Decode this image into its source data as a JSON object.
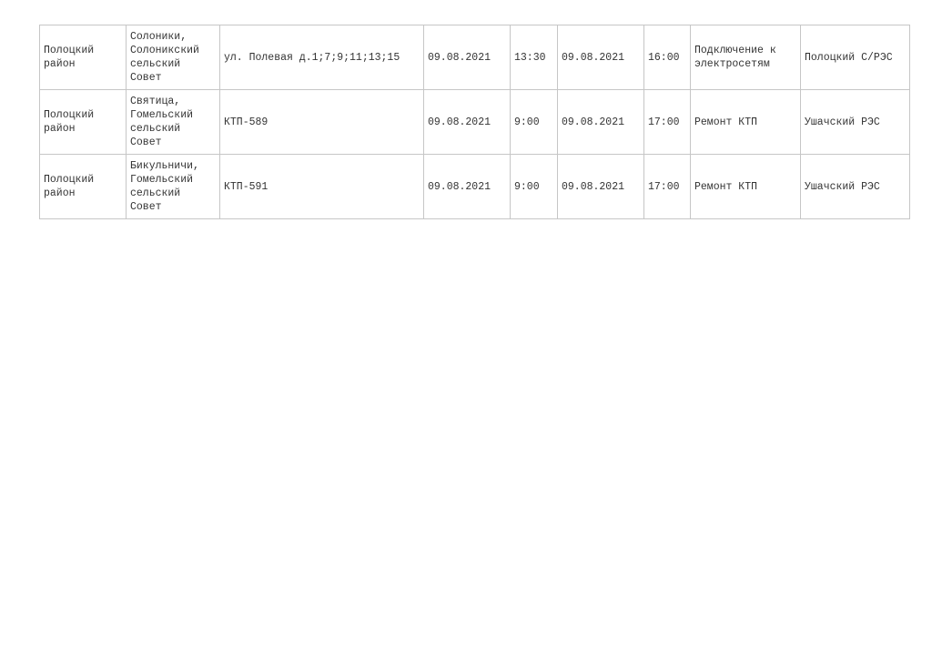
{
  "rows": [
    {
      "district": "Полоцкий район",
      "locality": "Солоники, Солоникский сельский Совет",
      "object": "ул. Полевая д.1;7;9;11;13;15",
      "start_date": "09.08.2021",
      "start_time": "13:30",
      "end_date": "09.08.2021",
      "end_time": "16:00",
      "reason": "Подключение к электросетям",
      "organization": "Полоцкий С/РЭС"
    },
    {
      "district": "Полоцкий район",
      "locality": "Святица, Гомельский сельский Совет",
      "object": "КТП-589",
      "start_date": "09.08.2021",
      "start_time": "9:00",
      "end_date": "09.08.2021",
      "end_time": "17:00",
      "reason": "Ремонт КТП",
      "organization": "Ушачский РЭС"
    },
    {
      "district": "Полоцкий район",
      "locality": "Бикульничи, Гомельский сельский Совет",
      "object": "КТП-591",
      "start_date": "09.08.2021",
      "start_time": "9:00",
      "end_date": "09.08.2021",
      "end_time": "17:00",
      "reason": "Ремонт КТП",
      "organization": "Ушачский РЭС"
    }
  ]
}
